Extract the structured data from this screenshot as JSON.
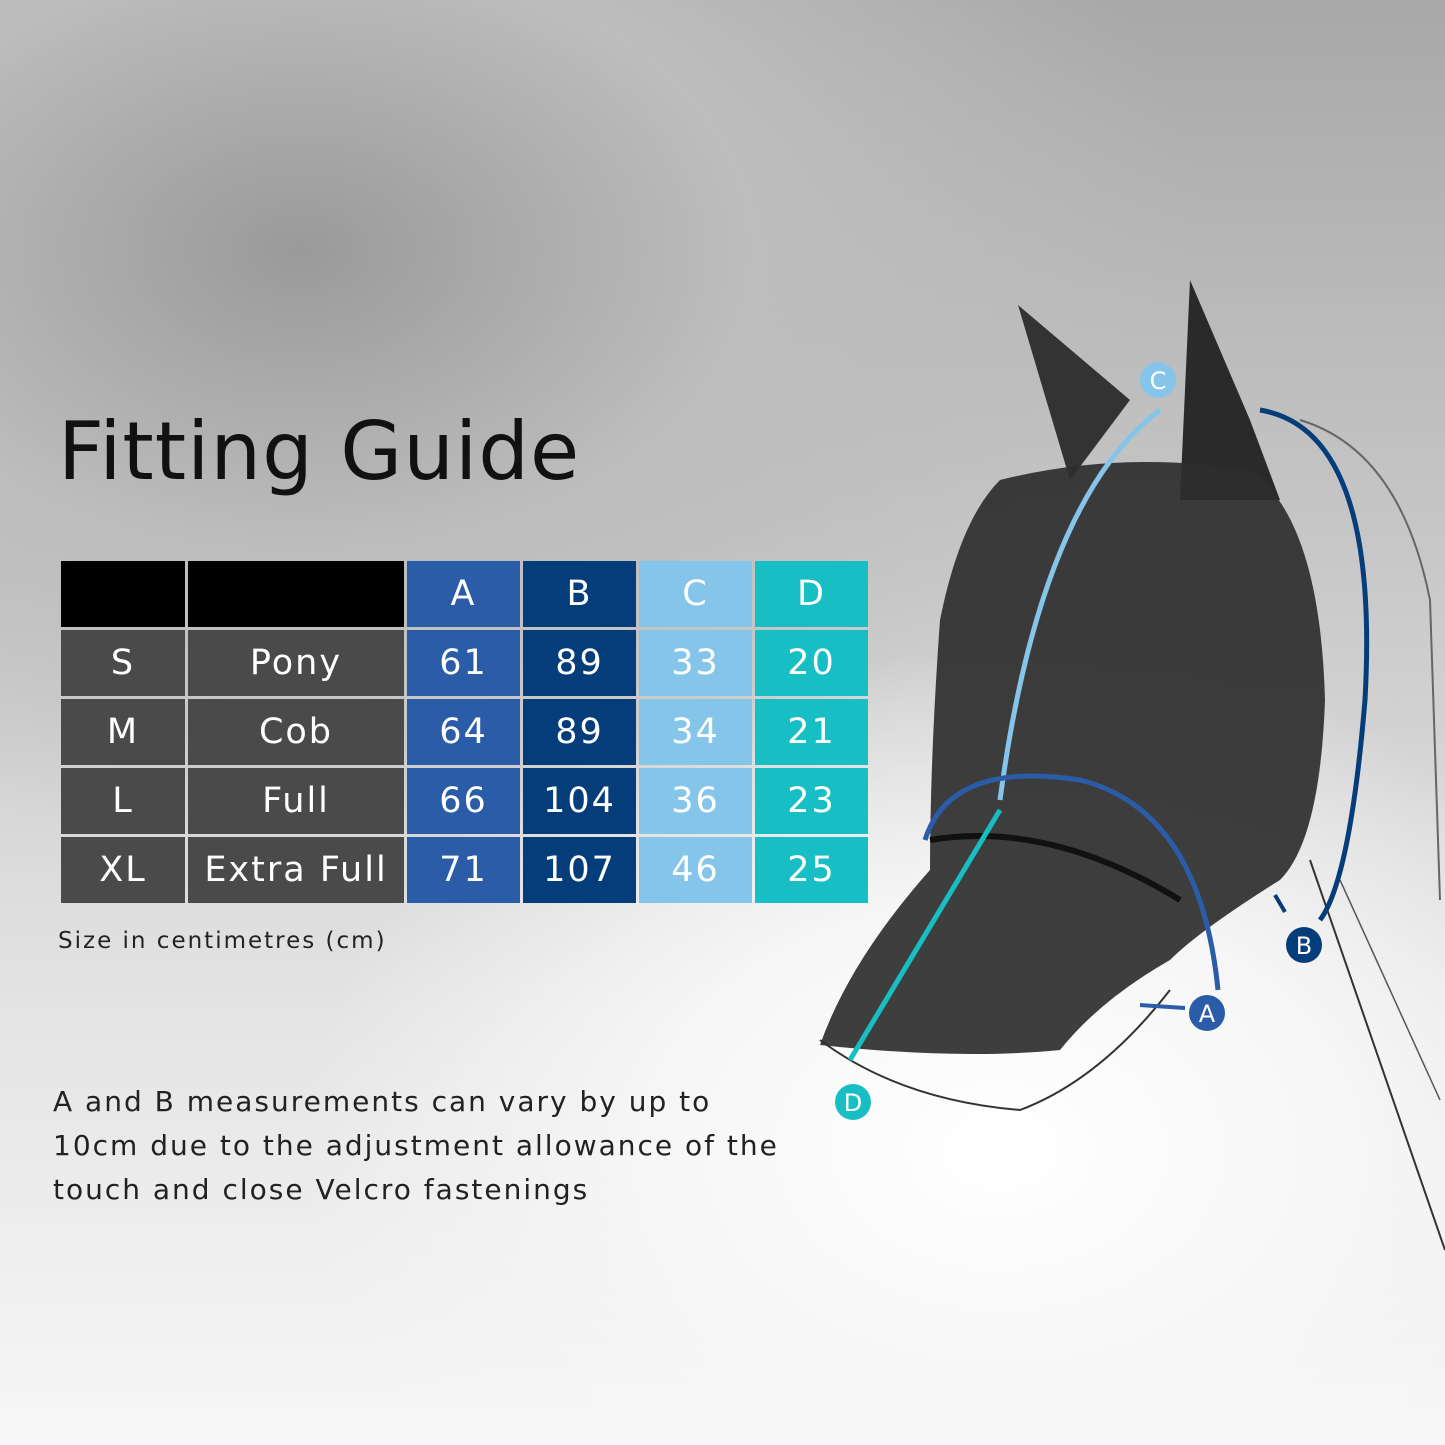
{
  "title": "Fitting Guide",
  "table": {
    "headers": [
      "",
      "",
      "A",
      "B",
      "C",
      "D"
    ],
    "rows": [
      {
        "size": "S",
        "name": "Pony",
        "a": "61",
        "b": "89",
        "c": "33",
        "d": "20"
      },
      {
        "size": "M",
        "name": "Cob",
        "a": "64",
        "b": "89",
        "c": "34",
        "d": "21"
      },
      {
        "size": "L",
        "name": "Full",
        "a": "66",
        "b": "104",
        "c": "36",
        "d": "23"
      },
      {
        "size": "XL",
        "name": "Extra Full",
        "a": "71",
        "b": "107",
        "c": "46",
        "d": "25"
      }
    ]
  },
  "unit_note": "Size in centimetres (cm)",
  "note_lines": [
    "A and B measurements can vary by up to",
    "10cm due to the adjustment allowance of the",
    "touch and close Velcro fastenings"
  ],
  "markers": {
    "a": "A",
    "b": "B",
    "c": "C",
    "d": "D"
  },
  "colors": {
    "a": "#2a5ca8",
    "b": "#053d7a",
    "c": "#86c5ea",
    "d": "#17bfc4",
    "label_cells": "#4a4a4a",
    "header_cells": "#000000"
  }
}
